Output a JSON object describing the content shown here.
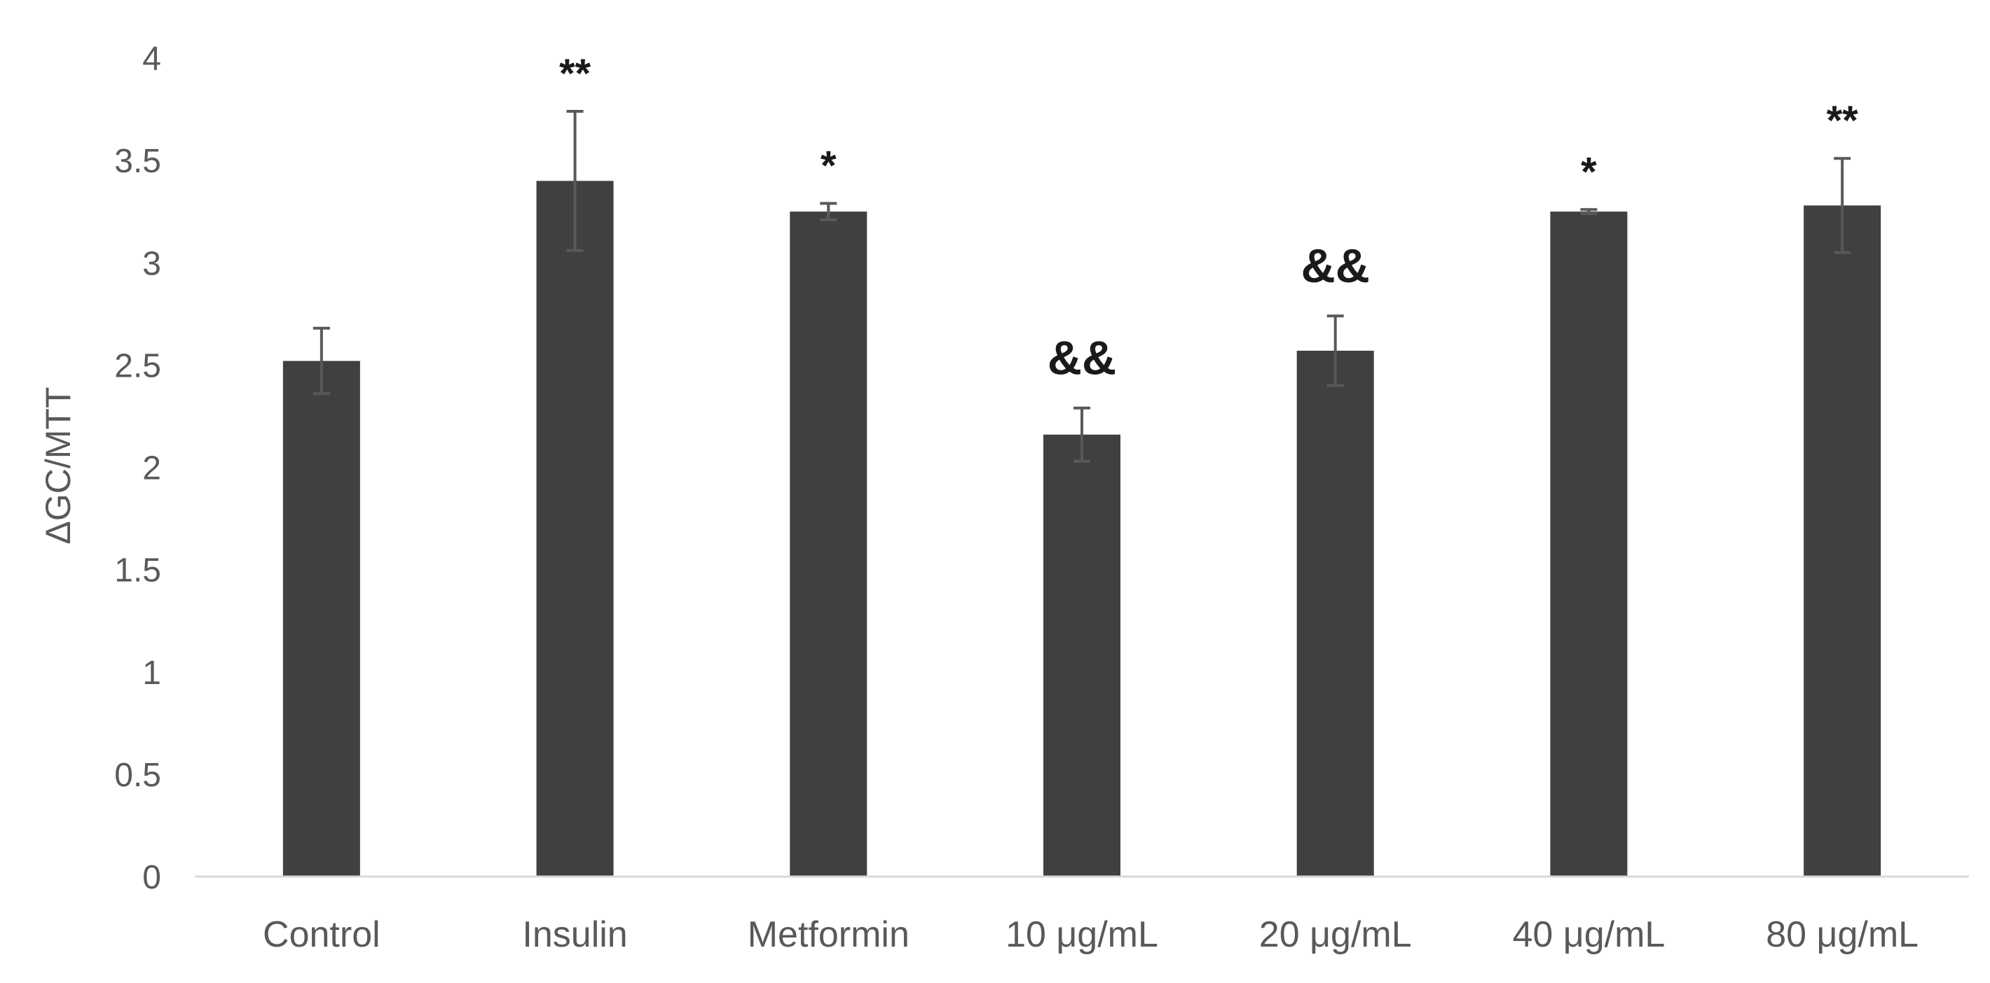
{
  "chart_data": {
    "type": "bar",
    "title": "",
    "xlabel": "",
    "ylabel": "ΔGC/MTT",
    "ylim": [
      0,
      4
    ],
    "yticks": [
      0,
      0.5,
      1,
      1.5,
      2,
      2.5,
      3,
      3.5,
      4
    ],
    "ytick_labels": [
      "0",
      "0.5",
      "1",
      "1.5",
      "2",
      "2.5",
      "3",
      "3.5",
      "4"
    ],
    "grid": false,
    "legend": "none",
    "categories": [
      "Control",
      "Insulin",
      "Metformin",
      "10 μg/mL",
      "20 μg/mL",
      "40 μg/mL",
      "80 μg/mL"
    ],
    "values": [
      2.52,
      3.4,
      3.25,
      2.16,
      2.57,
      3.25,
      3.28
    ],
    "errors": [
      0.16,
      0.34,
      0.04,
      0.13,
      0.17,
      0.01,
      0.23
    ],
    "annotations": [
      "",
      "**",
      "*",
      "&&",
      "&&",
      "*",
      "**"
    ],
    "bar_color": "#404040",
    "error_color": "#595959",
    "axis_color": "#d9d9d9"
  }
}
